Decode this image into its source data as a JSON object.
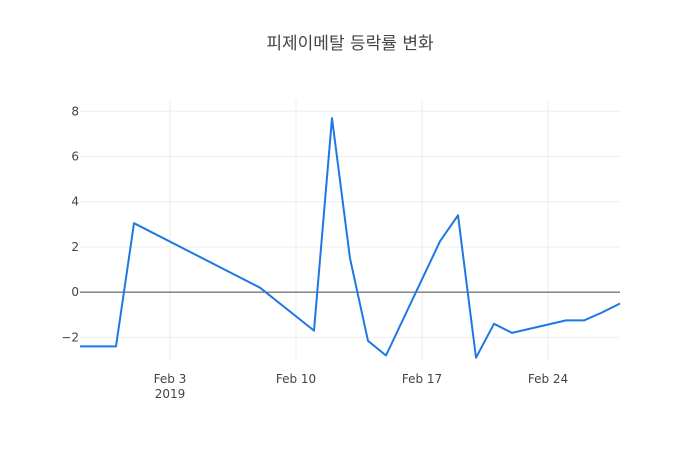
{
  "chart_data": {
    "type": "line",
    "title": "피제이메탈 등락률 변화",
    "xlabel": "",
    "ylabel": "",
    "x_type": "date",
    "xlim": [
      "2019-01-29",
      "2019-02-28"
    ],
    "ylim": [
      -3.0,
      8.5
    ],
    "x_ticks": [
      {
        "date": "2019-02-03",
        "label": "Feb 3",
        "sublabel": "2019"
      },
      {
        "date": "2019-02-10",
        "label": "Feb 10",
        "sublabel": ""
      },
      {
        "date": "2019-02-17",
        "label": "Feb 17",
        "sublabel": ""
      },
      {
        "date": "2019-02-24",
        "label": "Feb 24",
        "sublabel": ""
      }
    ],
    "y_ticks": [
      -2,
      0,
      2,
      4,
      6,
      8
    ],
    "grid": true,
    "zero_line": true,
    "series": [
      {
        "color": "#1f77e4",
        "x": [
          "2019-01-29",
          "2019-01-30",
          "2019-01-31",
          "2019-02-01",
          "2019-02-08",
          "2019-02-11",
          "2019-02-12",
          "2019-02-13",
          "2019-02-14",
          "2019-02-15",
          "2019-02-18",
          "2019-02-19",
          "2019-02-20",
          "2019-02-21",
          "2019-02-22",
          "2019-02-25",
          "2019-02-26",
          "2019-02-27",
          "2019-02-28"
        ],
        "y": [
          -2.4,
          -2.4,
          -2.4,
          3.05,
          0.2,
          -1.7,
          7.7,
          1.5,
          -2.15,
          -2.8,
          2.25,
          3.4,
          -2.9,
          -1.4,
          -1.8,
          -1.25,
          -1.25,
          -0.9,
          -0.5
        ]
      }
    ]
  }
}
